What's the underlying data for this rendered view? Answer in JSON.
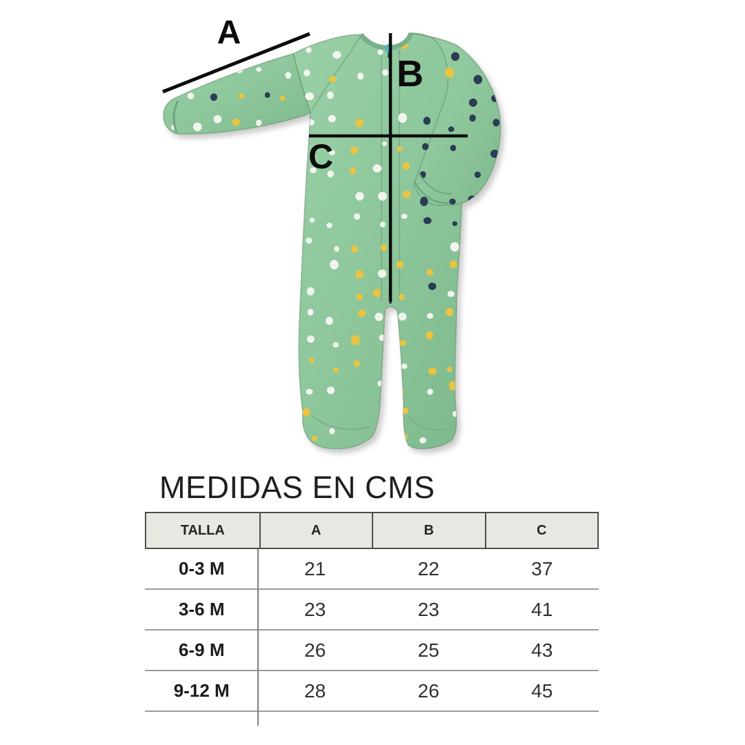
{
  "page": {
    "background": "#ffffff"
  },
  "diagram": {
    "description": "green polka-dot footed baby sleepsuit with measurement lines",
    "labels": {
      "a": "A",
      "b": "B",
      "c": "C"
    },
    "garment": {
      "fabric_color": "#8cc69a",
      "fabric_highlight": "#9bd0a7",
      "fabric_shadow": "#7eb98d",
      "dot_colors": {
        "white": "#f1f5ee",
        "yellow": "#eac43f",
        "navy": "#2c3d53"
      },
      "zipper_color": "#26313c",
      "zipper_pull_color": "#4ab6c5",
      "measure_line_color": "#0c0c0c"
    }
  },
  "section": {
    "title": "MEDIDAS EN CMS"
  },
  "table": {
    "headers": [
      "TALLA",
      "A",
      "B",
      "C"
    ],
    "rows": [
      {
        "size": "0-3 M",
        "a": "21",
        "b": "22",
        "c": "37"
      },
      {
        "size": "3-6 M",
        "a": "23",
        "b": "23",
        "c": "41"
      },
      {
        "size": "6-9 M",
        "a": "26",
        "b": "25",
        "c": "43"
      },
      {
        "size": "9-12 M",
        "a": "28",
        "b": "26",
        "c": "45"
      }
    ]
  },
  "chart_data": {
    "type": "table",
    "title": "MEDIDAS EN CMS",
    "units": "cms",
    "columns": [
      "TALLA",
      "A",
      "B",
      "C"
    ],
    "rows": [
      [
        "0-3 M",
        21,
        22,
        37
      ],
      [
        "3-6 M",
        23,
        23,
        41
      ],
      [
        "6-9 M",
        26,
        25,
        43
      ],
      [
        "9-12 M",
        28,
        26,
        45
      ]
    ]
  }
}
